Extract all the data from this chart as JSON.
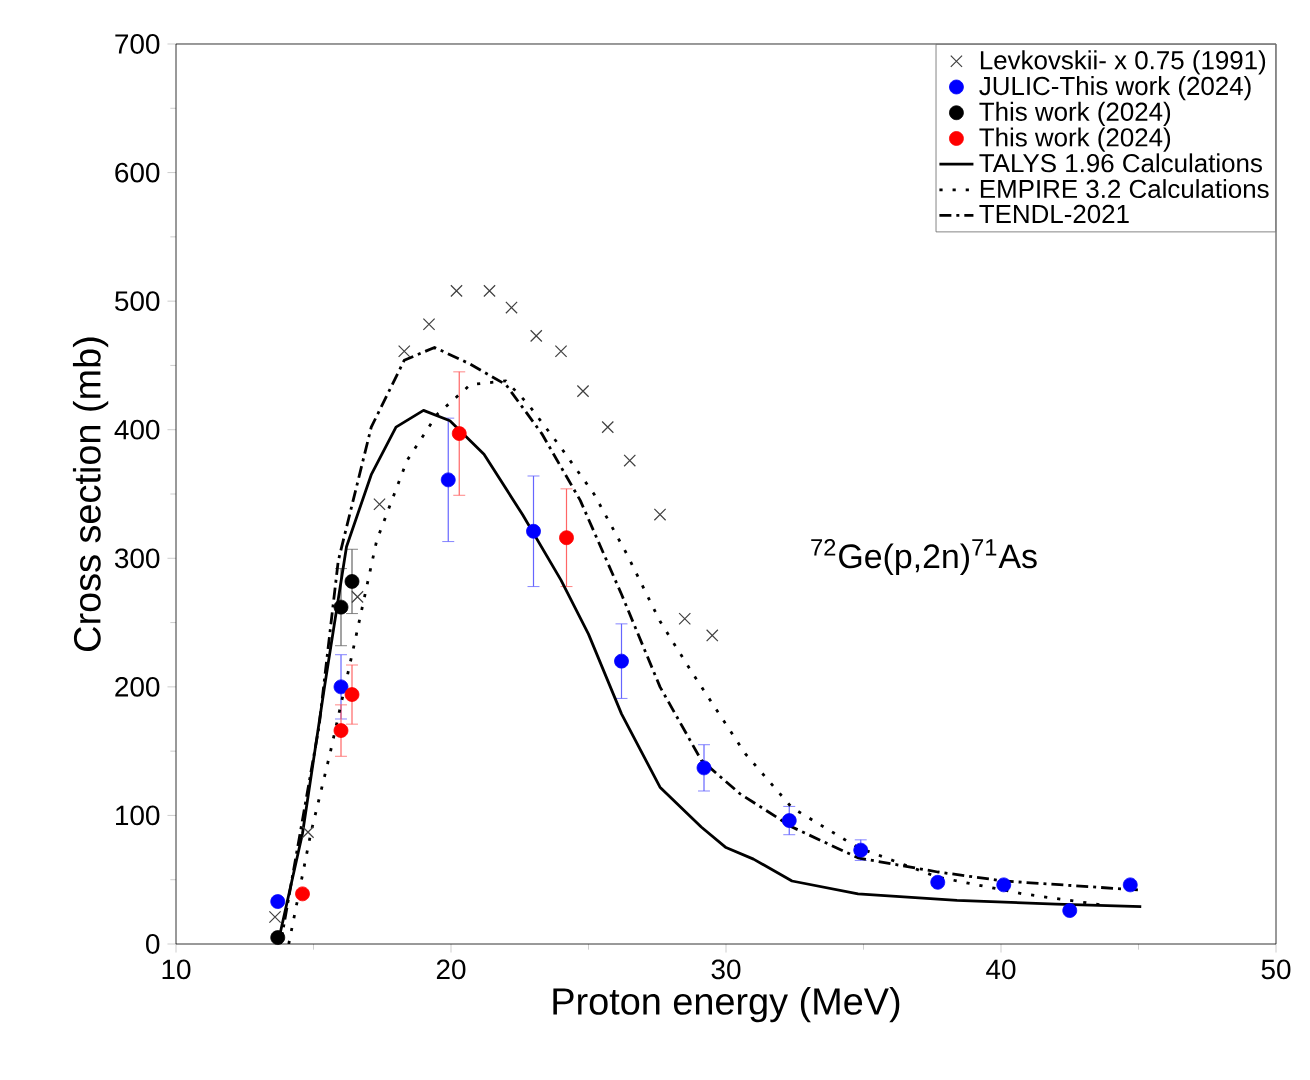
{
  "chart_data": {
    "type": "scatter",
    "xlabel": "Proton energy (MeV)",
    "ylabel": "Cross section (mb)",
    "xlim": [
      10,
      50
    ],
    "xticks": [
      10,
      20,
      30,
      40,
      50
    ],
    "ylim": [
      0,
      700
    ],
    "yticks": [
      0,
      100,
      200,
      300,
      400,
      500,
      600,
      700
    ],
    "legend": "top right",
    "grid": false,
    "annotations": [
      "$^{72}$Ge(p,2n)$^{71}$As"
    ],
    "series": [
      {
        "name": "Levkovskii- x 0.75 (1991)",
        "marker": "cross",
        "color": "#404040",
        "x": [
          13.6,
          14.8,
          16.6,
          17.4,
          18.3,
          19.2,
          20.2,
          21.4,
          22.2,
          23.1,
          24.0,
          24.8,
          25.7,
          26.5,
          27.6,
          28.5,
          29.5
        ],
        "values": [
          21,
          87,
          270,
          342,
          461,
          482,
          508,
          508,
          495,
          473,
          461,
          430,
          402,
          376,
          334,
          253,
          240
        ]
      },
      {
        "name": "JULIC-This work (2024)",
        "marker": "circle",
        "color": "#0000ff",
        "x": [
          13.7,
          16.0,
          19.9,
          23.0,
          26.2,
          29.2,
          32.3,
          34.9,
          37.7,
          40.1,
          42.5,
          44.7
        ],
        "values": [
          33,
          200,
          361,
          321,
          220,
          137,
          96,
          73,
          48,
          46,
          26,
          46
        ],
        "errors": [
          null,
          25,
          48,
          43,
          29,
          18,
          11,
          8,
          null,
          null,
          null,
          null
        ]
      },
      {
        "name": "This work (2024)",
        "marker": "circle",
        "color": "#000000",
        "x": [
          13.7,
          16.0,
          16.4
        ],
        "values": [
          5,
          262,
          282
        ],
        "errors": [
          null,
          30,
          25
        ]
      },
      {
        "name": "This work (2024)",
        "marker": "circle",
        "color": "#ff0000",
        "x": [
          14.6,
          16.0,
          16.4,
          20.3,
          24.2
        ],
        "values": [
          39,
          166,
          194,
          397,
          316
        ],
        "errors": [
          null,
          20,
          23,
          48,
          38
        ]
      },
      {
        "name": "TALYS 1.96 Calculations",
        "type": "line",
        "line_style": "solid",
        "marker": "none",
        "color": "#000000",
        "x": [
          13.7,
          14.6,
          15.4,
          16.2,
          17.1,
          18.0,
          19.0,
          19.96,
          21.2,
          22.6,
          24.0,
          25.0,
          26.2,
          27.6,
          29.1,
          30.0,
          31.0,
          32.4,
          34.8,
          38.4,
          42.0,
          45.1
        ],
        "values": [
          0,
          86,
          200,
          309,
          365,
          402,
          415,
          407,
          381,
          334,
          283,
          241,
          179,
          122,
          91,
          75,
          66,
          49,
          39,
          34,
          31,
          29
        ]
      },
      {
        "name": "EMPIRE 3.2 Calculations",
        "type": "line",
        "line_style": "dotted",
        "marker": "none",
        "color": "#000000",
        "x": [
          14.1,
          14.9,
          15.6,
          16.4,
          17.3,
          18.4,
          19.5,
          20.7,
          22.0,
          22.8,
          24.0,
          25.2,
          26.4,
          27.6,
          28.8,
          30.7,
          32.4,
          34.8,
          37.7,
          40.8,
          43.8
        ],
        "values": [
          0,
          86,
          148,
          225,
          314,
          376,
          412,
          435,
          438,
          420,
          386,
          350,
          303,
          251,
          210,
          148,
          106,
          75,
          52,
          39,
          30
        ]
      },
      {
        "name": "TENDL-2021",
        "type": "line",
        "line_style": "dashdot",
        "marker": "none",
        "color": "#000000",
        "x": [
          13.8,
          15.2,
          15.9,
          17.1,
          18.3,
          19.4,
          20.7,
          22.0,
          23.3,
          24.7,
          26.2,
          27.6,
          29.1,
          30.5,
          32.4,
          34.8,
          37.7,
          40.1,
          45.0
        ],
        "values": [
          0,
          169,
          298,
          402,
          454,
          464,
          451,
          435,
          397,
          345,
          272,
          200,
          143,
          117,
          91,
          67,
          56,
          49,
          42
        ]
      }
    ]
  }
}
